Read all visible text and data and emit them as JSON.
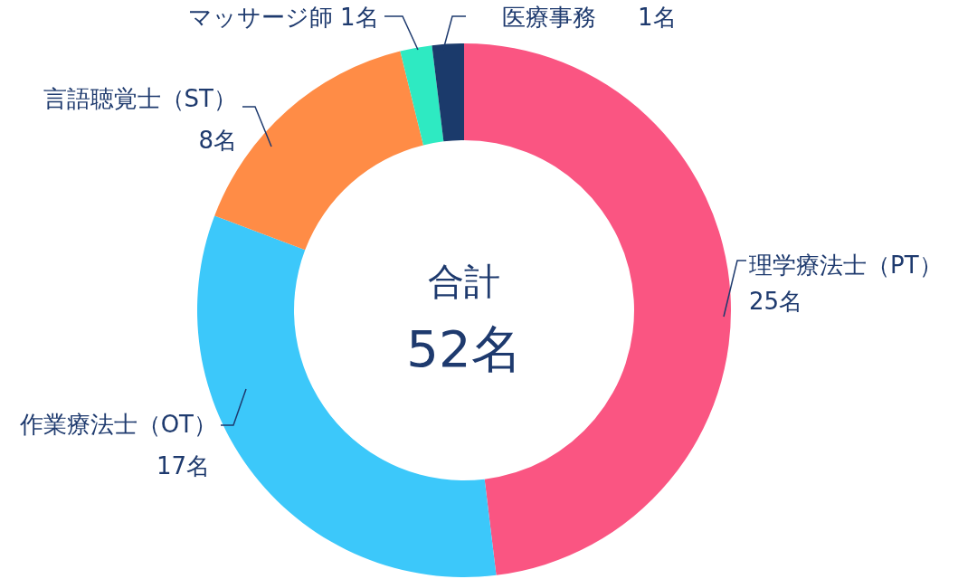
{
  "chart_data": {
    "type": "donut",
    "categories": [
      "理学療法士（PT）",
      "作業療法士（OT）",
      "言語聴覚士（ST）",
      "マッサージ師",
      "医療事務"
    ],
    "values": [
      25,
      17,
      8,
      1,
      1
    ],
    "colors": [
      "#fa5582",
      "#3cc8fa",
      "#ff8c46",
      "#2eeac2",
      "#1b3a6b"
    ],
    "value_labels": [
      "25名",
      "17名",
      "8名",
      "1名",
      "1名"
    ],
    "annotations": [
      "合計",
      "52名"
    ]
  }
}
